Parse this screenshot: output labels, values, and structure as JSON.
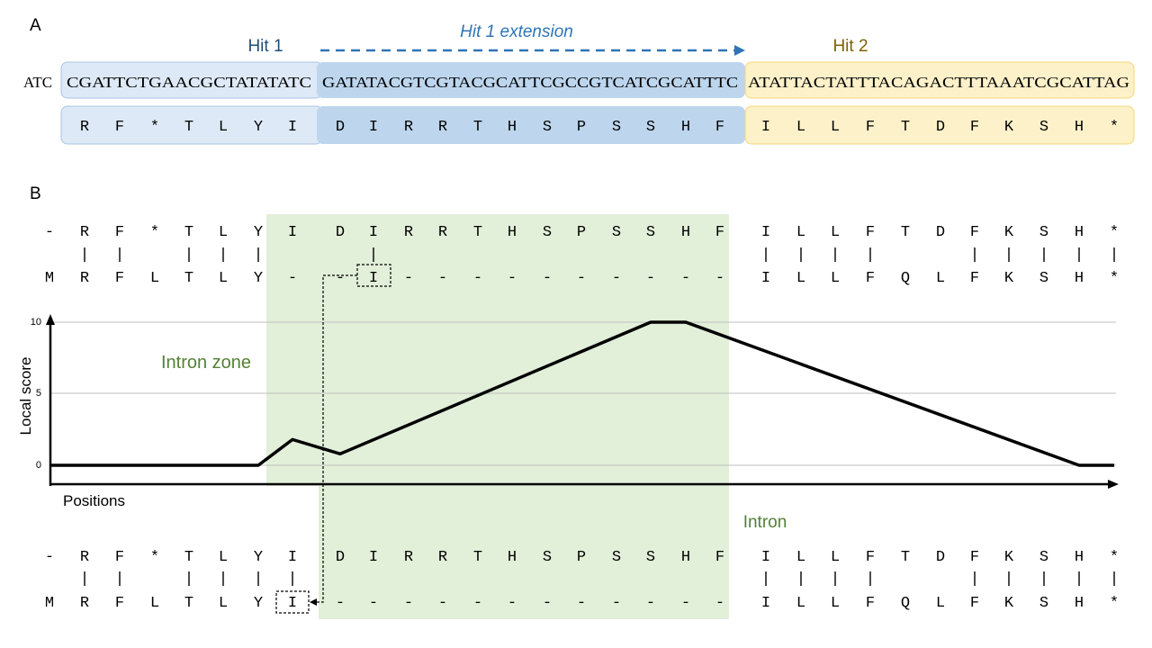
{
  "panelA": {
    "label": "A",
    "hit1_label": "Hit 1",
    "hit1_ext_label": "Hit 1 extension",
    "hit2_label": "Hit 2",
    "prefix": "ATC",
    "seq_hit1": "CGATTCTGAACGCTATATATC",
    "seq_ext": "GATATACGTCGTACGCATTCGCCGTCATCGCATTTC",
    "seq_hit2": "ATATTACTATTTACAGACTTTAAATCGCATTAG",
    "aa_hit1": [
      "R",
      "F",
      "*",
      "T",
      "L",
      "Y",
      "I"
    ],
    "aa_ext": [
      "D",
      "I",
      "R",
      "R",
      "T",
      "H",
      "S",
      "P",
      "S",
      "S",
      "H",
      "F"
    ],
    "aa_hit2": [
      "I",
      "L",
      "L",
      "F",
      "T",
      "D",
      "F",
      "K",
      "S",
      "H",
      "*"
    ]
  },
  "panelB": {
    "label": "B",
    "top_row": [
      "-",
      "R",
      "F",
      "*",
      "T",
      "L",
      "Y",
      "I",
      "D",
      "I",
      "R",
      "R",
      "T",
      "H",
      "S",
      "P",
      "S",
      "S",
      "H",
      "F",
      "I",
      "L",
      "L",
      "F",
      "T",
      "D",
      "F",
      "K",
      "S",
      "H",
      "*"
    ],
    "top_match": [
      0,
      1,
      1,
      0,
      1,
      1,
      1,
      0,
      0,
      1,
      0,
      0,
      0,
      0,
      0,
      0,
      0,
      0,
      0,
      0,
      1,
      1,
      1,
      1,
      0,
      0,
      1,
      1,
      1,
      1,
      1
    ],
    "top_bottom_row": [
      "M",
      "R",
      "F",
      "L",
      "T",
      "L",
      "Y",
      "-",
      "-",
      "I",
      "-",
      "-",
      "-",
      "-",
      "-",
      "-",
      "-",
      "-",
      "-",
      "-",
      "I",
      "L",
      "L",
      "F",
      "Q",
      "L",
      "F",
      "K",
      "S",
      "H",
      "*"
    ],
    "bot_row": [
      "-",
      "R",
      "F",
      "*",
      "T",
      "L",
      "Y",
      "I",
      "D",
      "I",
      "R",
      "R",
      "T",
      "H",
      "S",
      "P",
      "S",
      "S",
      "H",
      "F",
      "I",
      "L",
      "L",
      "F",
      "T",
      "D",
      "F",
      "K",
      "S",
      "H",
      "*"
    ],
    "bot_match": [
      0,
      1,
      1,
      0,
      1,
      1,
      1,
      1,
      0,
      0,
      0,
      0,
      0,
      0,
      0,
      0,
      0,
      0,
      0,
      0,
      1,
      1,
      1,
      1,
      0,
      0,
      1,
      1,
      1,
      1,
      1
    ],
    "bot_bottom_row": [
      "M",
      "R",
      "F",
      "L",
      "T",
      "L",
      "Y",
      "I",
      "-",
      "-",
      "-",
      "-",
      "-",
      "-",
      "-",
      "-",
      "-",
      "-",
      "-",
      "-",
      "I",
      "L",
      "L",
      "F",
      "Q",
      "L",
      "F",
      "K",
      "S",
      "H",
      "*"
    ],
    "intron_zone_label": "Intron zone",
    "intron_label": "Intron",
    "ylabel": "Local score",
    "xlabel": "Positions"
  },
  "chart_data": {
    "type": "line",
    "title": "",
    "xlabel": "Positions",
    "ylabel": "Local score",
    "yticks": [
      0,
      5,
      10
    ],
    "ylim": [
      0,
      10
    ],
    "series": [
      {
        "x": [
          0,
          6,
          7,
          8,
          17,
          18,
          29,
          30
        ],
        "y": [
          0,
          0,
          1.8,
          0.8,
          10,
          10,
          0,
          0
        ]
      }
    ],
    "grid": true
  },
  "colors": {
    "hit1_fill": "#dde9f6",
    "hit1_stroke": "#a9c4e4",
    "ext_fill": "#bdd6ee",
    "hit2_fill": "#fdf1c9",
    "hit2_stroke": "#f3d77a",
    "hit1_text": "#1f4e79",
    "ext_text": "#2e75b6",
    "hit2_text": "#7f6000",
    "zone_fill": "#e2efd9",
    "zone_text": "#538135"
  }
}
